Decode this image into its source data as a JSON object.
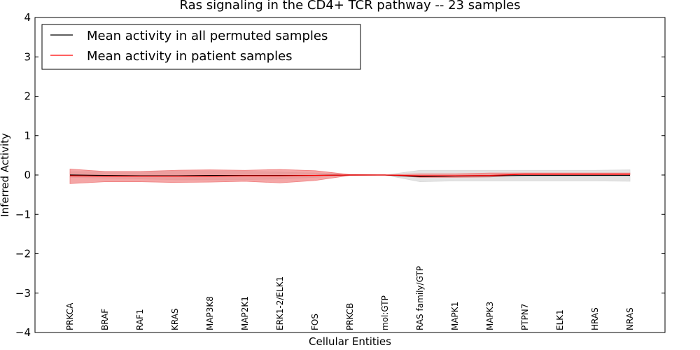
{
  "chart_data": {
    "type": "line",
    "title": "Ras signaling in the CD4+ TCR pathway -- 23 samples",
    "xlabel": "Cellular Entities",
    "ylabel": "Inferred Activity",
    "ylim": [
      -4,
      4
    ],
    "yticks": [
      4,
      3,
      2,
      1,
      0,
      -1,
      -2,
      -3,
      -4
    ],
    "ytick_labels": [
      "4",
      "3",
      "2",
      "1",
      "0",
      "−1",
      "−2",
      "−3",
      "−4"
    ],
    "categories": [
      "PRKCA",
      "BRAF",
      "RAF1",
      "KRAS",
      "MAP3K8",
      "MAP2K1",
      "ERK1-2/ELK1",
      "FOS",
      "PRKCB",
      "mol:GTP",
      "RAS family/GTP",
      "MAPK1",
      "MAPK3",
      "PTPN7",
      "ELK1",
      "HRAS",
      "NRAS"
    ],
    "legend_position": "top-left",
    "grid": false,
    "series": [
      {
        "name": "Mean activity in all permuted samples",
        "color": "#000000",
        "band_color": "#d9d9d9",
        "values": [
          0.0,
          -0.01,
          -0.02,
          -0.02,
          -0.01,
          -0.01,
          -0.01,
          -0.01,
          0.0,
          0.0,
          -0.04,
          -0.03,
          -0.02,
          -0.01,
          -0.01,
          -0.01,
          -0.01
        ],
        "lower": [
          -0.06,
          -0.08,
          -0.1,
          -0.12,
          -0.12,
          -0.12,
          -0.1,
          -0.06,
          -0.01,
          0.0,
          -0.17,
          -0.15,
          -0.15,
          -0.15,
          -0.15,
          -0.15,
          -0.16
        ],
        "upper": [
          0.08,
          0.08,
          0.09,
          0.09,
          0.09,
          0.09,
          0.07,
          0.05,
          0.01,
          0.0,
          0.12,
          0.12,
          0.12,
          0.12,
          0.12,
          0.12,
          0.13
        ]
      },
      {
        "name": "Mean activity in patient samples",
        "color": "#ff0000",
        "band_color": "#f08080",
        "values": [
          -0.02,
          -0.03,
          -0.03,
          -0.03,
          -0.03,
          -0.02,
          -0.02,
          -0.01,
          0.0,
          0.0,
          -0.02,
          -0.02,
          -0.01,
          0.02,
          0.02,
          0.02,
          0.02
        ],
        "lower": [
          -0.22,
          -0.17,
          -0.17,
          -0.19,
          -0.18,
          -0.16,
          -0.2,
          -0.14,
          -0.01,
          0.0,
          -0.06,
          -0.06,
          -0.05,
          0.0,
          0.0,
          0.0,
          0.0
        ],
        "upper": [
          0.15,
          0.09,
          0.09,
          0.12,
          0.13,
          0.12,
          0.14,
          0.11,
          0.01,
          0.0,
          0.03,
          0.03,
          0.05,
          0.05,
          0.05,
          0.05,
          0.05
        ]
      }
    ]
  }
}
